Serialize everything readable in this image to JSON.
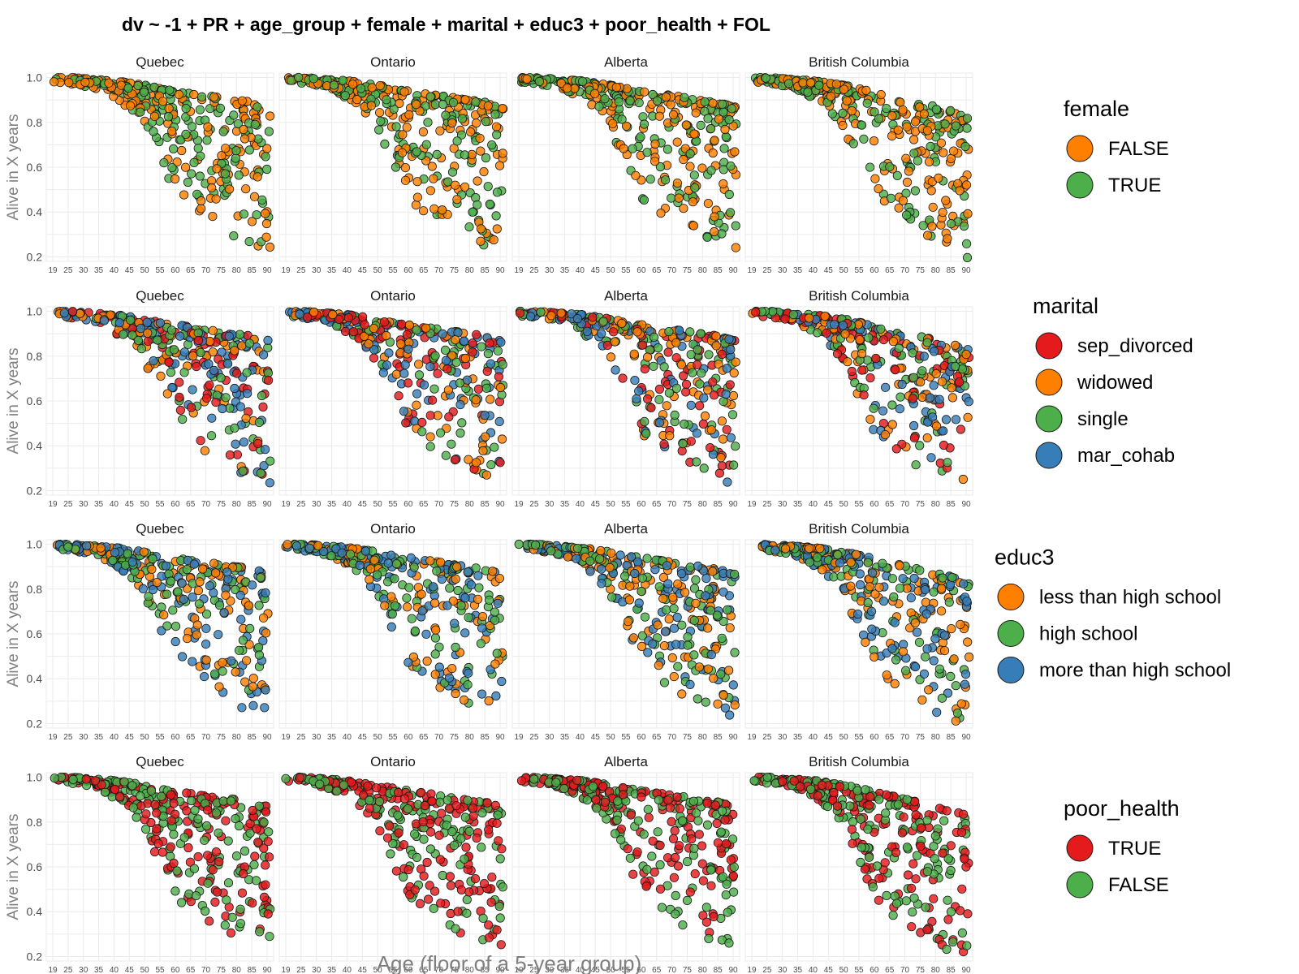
{
  "figure": {
    "title": "dv ~ -1 + PR + age_group + female + marital + educ3 + poor_health + FOL",
    "xlabel": "Age (floor of a 5-year group)",
    "ylabel": "Alive in X years"
  },
  "chart_data": {
    "type": "scatter",
    "grid": true,
    "facets": [
      "Quebec",
      "Ontario",
      "Alberta",
      "British Columbia"
    ],
    "x_ticks": [
      "19",
      "25",
      "30",
      "35",
      "40",
      "45",
      "50",
      "55",
      "60",
      "65",
      "70",
      "75",
      "80",
      "85",
      "90"
    ],
    "y_ticks": [
      "0.2",
      "0.4",
      "0.6",
      "0.8",
      "1.0"
    ],
    "ylim": [
      0.18,
      1.02
    ],
    "profile": {
      "ages": [
        19,
        25,
        30,
        35,
        40,
        45,
        50,
        55,
        60,
        65,
        70,
        75,
        80,
        85,
        90
      ],
      "max": [
        1.0,
        1.0,
        0.995,
        0.99,
        0.985,
        0.975,
        0.965,
        0.95,
        0.94,
        0.93,
        0.92,
        0.91,
        0.9,
        0.89,
        0.87
      ],
      "min": [
        0.98,
        0.97,
        0.96,
        0.94,
        0.9,
        0.85,
        0.75,
        0.6,
        0.45,
        0.4,
        0.35,
        0.32,
        0.28,
        0.25,
        0.22
      ]
    },
    "panels": [
      {
        "legend_title": "female",
        "groups": [
          {
            "label": "FALSE",
            "color": "#FF7F00"
          },
          {
            "label": "TRUE",
            "color": "#4DAF4A"
          }
        ]
      },
      {
        "legend_title": "marital",
        "groups": [
          {
            "label": "sep_divorced",
            "color": "#E41A1C"
          },
          {
            "label": "widowed",
            "color": "#FF7F00"
          },
          {
            "label": "single",
            "color": "#4DAF4A"
          },
          {
            "label": "mar_cohab",
            "color": "#377EB8"
          }
        ]
      },
      {
        "legend_title": "educ3",
        "groups": [
          {
            "label": "less than high school",
            "color": "#FF7F00"
          },
          {
            "label": "high school",
            "color": "#4DAF4A"
          },
          {
            "label": "more than high school",
            "color": "#377EB8"
          }
        ]
      },
      {
        "legend_title": "poor_health",
        "groups": [
          {
            "label": "TRUE",
            "color": "#E41A1C"
          },
          {
            "label": "FALSE",
            "color": "#4DAF4A"
          }
        ]
      }
    ]
  }
}
